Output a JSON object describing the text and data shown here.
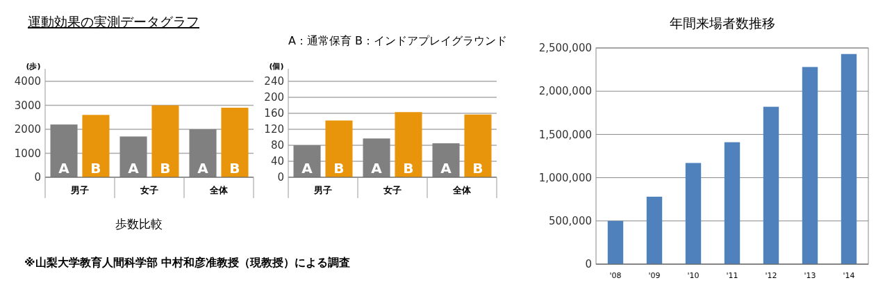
{
  "chart_data": [
    {
      "type": "bar",
      "title": "運動効果の実測データグラフ",
      "ylabel": "(歩)",
      "categories": [
        "男子",
        "女子",
        "全体"
      ],
      "series": [
        {
          "name": "A",
          "color": "#808080",
          "values": [
            2200,
            1700,
            2000
          ]
        },
        {
          "name": "B",
          "color": "#e8950c",
          "values": [
            2600,
            3000,
            2900
          ]
        }
      ],
      "ylim": [
        0,
        4000
      ],
      "yticks": [
        0,
        1000,
        2000,
        3000,
        4000
      ],
      "grid": "y",
      "annotations": [
        "歩数比較",
        "※山梨大学教育人間科学部 中村和彦准教授（現教授）による調査"
      ]
    },
    {
      "type": "bar",
      "subtitle": "A：通常保育 B：インドアプレイグラウンド",
      "ylabel": "(個)",
      "categories": [
        "男子",
        "女子",
        "全体"
      ],
      "series": [
        {
          "name": "A",
          "color": "#808080",
          "values": [
            80,
            97,
            85
          ]
        },
        {
          "name": "B",
          "color": "#e8950c",
          "values": [
            142,
            163,
            157
          ]
        }
      ],
      "ylim": [
        0,
        240
      ],
      "yticks": [
        0,
        40,
        80,
        120,
        160,
        200,
        240
      ],
      "grid": "y"
    },
    {
      "type": "bar",
      "title": "年間来場者数推移",
      "categories": [
        "'08",
        "'09",
        "'10",
        "'11",
        "'12",
        "'13",
        "'14"
      ],
      "series": [
        {
          "color": "#4f81bd",
          "values": [
            500000,
            780000,
            1170000,
            1410000,
            1820000,
            2280000,
            2430000
          ]
        }
      ],
      "ylim": [
        0,
        2500000
      ],
      "yticks": [
        {
          "value": 0,
          "label": "0"
        },
        {
          "value": 500000,
          "label": "500,000"
        },
        {
          "value": 1000000,
          "label": "1,000,000"
        },
        {
          "value": 1500000,
          "label": "1,500,000"
        },
        {
          "value": 2000000,
          "label": "2,000,000"
        },
        {
          "value": 2500000,
          "label": "2,500,000"
        }
      ],
      "grid": "y"
    }
  ]
}
